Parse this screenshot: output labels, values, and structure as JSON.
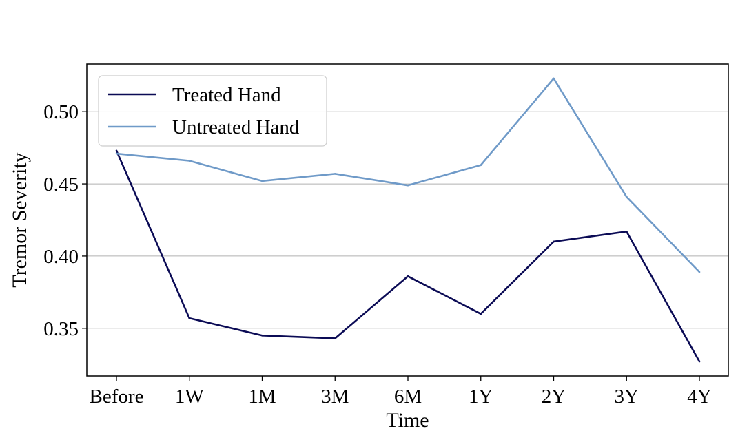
{
  "chart_data": {
    "type": "line",
    "title": "",
    "xlabel": "Time",
    "ylabel": "Tremor Severity",
    "categories": [
      "Before",
      "1W",
      "1M",
      "3M",
      "6M",
      "1Y",
      "2Y",
      "3Y",
      "4Y"
    ],
    "ylim": [
      0.317,
      0.533
    ],
    "yticks": [
      0.35,
      0.4,
      0.45,
      0.5
    ],
    "ytick_labels": [
      "0.35",
      "0.40",
      "0.45",
      "0.50"
    ],
    "grid": "horizontal",
    "legend_position": "top-left",
    "series": [
      {
        "name": "Treated Hand",
        "color": "#0b0b55",
        "values": [
          0.473,
          0.357,
          0.345,
          0.343,
          0.386,
          0.36,
          0.41,
          0.417,
          0.327
        ]
      },
      {
        "name": "Untreated Hand",
        "color": "#6f9ac8",
        "values": [
          0.471,
          0.466,
          0.452,
          0.457,
          0.449,
          0.463,
          0.523,
          0.441,
          0.389
        ]
      }
    ]
  }
}
